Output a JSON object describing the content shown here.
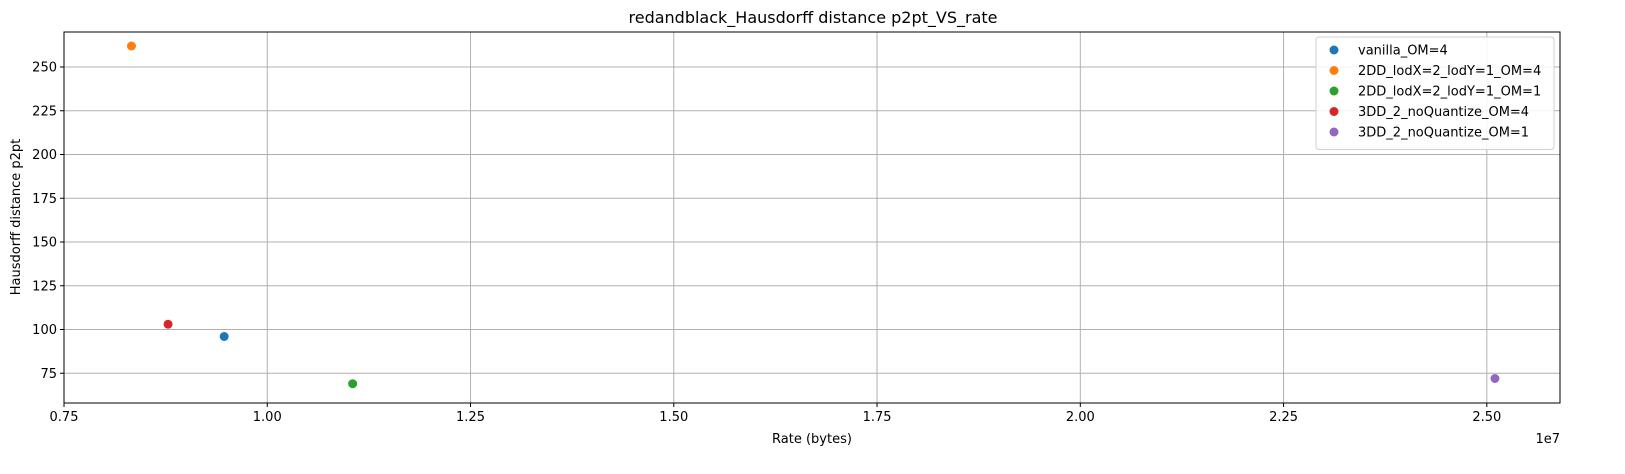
{
  "chart_data": {
    "type": "scatter",
    "title": "redandblack_Hausdorff distance p2pt_VS_rate",
    "xlabel": "Rate (bytes)",
    "ylabel": "Hausdorff distance p2pt",
    "x_offset_label": "1e7",
    "xlim": [
      7500000,
      25900000
    ],
    "ylim": [
      58,
      270
    ],
    "x_ticks": [
      7500000,
      10000000,
      12500000,
      15000000,
      17500000,
      20000000,
      22500000,
      25000000
    ],
    "x_tick_labels": [
      "0.75",
      "1.00",
      "1.25",
      "1.50",
      "1.75",
      "2.00",
      "2.25",
      "2.50"
    ],
    "y_ticks": [
      75,
      100,
      125,
      150,
      175,
      200,
      225,
      250
    ],
    "y_tick_labels": [
      "75",
      "100",
      "125",
      "150",
      "175",
      "200",
      "225",
      "250"
    ],
    "grid": true,
    "legend_position": "top-right",
    "series": [
      {
        "name": "vanilla_OM=4",
        "color": "#1f77b4",
        "points": [
          {
            "x": 9470000,
            "y": 96
          }
        ]
      },
      {
        "name": "2DD_lodX=2_lodY=1_OM=4",
        "color": "#ff7f0e",
        "points": [
          {
            "x": 8330000,
            "y": 262
          }
        ]
      },
      {
        "name": "2DD_lodX=2_lodY=1_OM=1",
        "color": "#2ca02c",
        "points": [
          {
            "x": 11050000,
            "y": 69
          }
        ]
      },
      {
        "name": "3DD_2_noQuantize_OM=4",
        "color": "#d62728",
        "points": [
          {
            "x": 8780000,
            "y": 103
          }
        ]
      },
      {
        "name": "3DD_2_noQuantize_OM=1",
        "color": "#9467bd",
        "points": [
          {
            "x": 25100000,
            "y": 72
          }
        ]
      }
    ]
  }
}
